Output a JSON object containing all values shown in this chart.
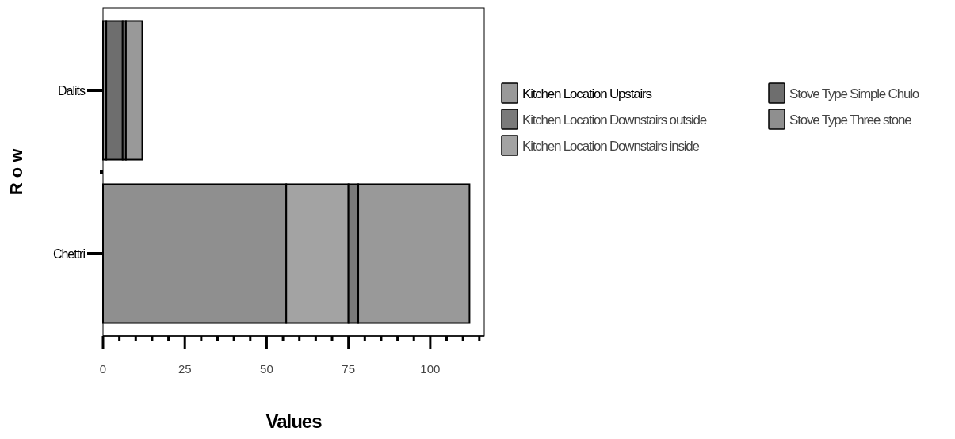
{
  "chart_data": {
    "type": "bar",
    "orientation": "horizontal",
    "stacked": true,
    "ylabel": "R o w",
    "xlabel": "Values",
    "categories": [
      "Dalits",
      "Chettri"
    ],
    "series": [
      {
        "name": "Stove Type Three stone",
        "color": "#8f8f8f",
        "values": [
          1,
          56
        ]
      },
      {
        "name": "Stove Type Simple Chulo",
        "color": "#6e6e6e",
        "values": [
          5,
          0
        ]
      },
      {
        "name": "Kitchen Location Downstairs inside",
        "color": "#a3a3a3",
        "values": [
          0,
          19
        ]
      },
      {
        "name": "Kitchen Location Downstairs outside",
        "color": "#7a7a7a",
        "values": [
          1,
          3
        ]
      },
      {
        "name": "Kitchen Location Upstairs",
        "color": "#999999",
        "values": [
          5,
          34
        ]
      }
    ],
    "xlim": [
      0,
      116.5
    ],
    "xticks": [
      0,
      {
        "value": 5,
        "label": null
      },
      {
        "value": 10,
        "label": null
      },
      {
        "value": 15,
        "label": null
      },
      {
        "value": 20,
        "label": null
      },
      25,
      {
        "value": 30,
        "label": null
      },
      {
        "value": 35,
        "label": null
      },
      {
        "value": 40,
        "label": null
      },
      {
        "value": 45,
        "label": null
      },
      50,
      {
        "value": 55,
        "label": null
      },
      {
        "value": 60,
        "label": null
      },
      {
        "value": 65,
        "label": null
      },
      {
        "value": 70,
        "label": null
      },
      75,
      {
        "value": 80,
        "label": null
      },
      {
        "value": 85,
        "label": null
      },
      {
        "value": 90,
        "label": null
      },
      {
        "value": 95,
        "label": null
      },
      100,
      {
        "value": 105,
        "label": null
      },
      {
        "value": 110,
        "label": null
      },
      {
        "value": 115,
        "label": null
      }
    ],
    "legend": "right",
    "grid": false
  }
}
